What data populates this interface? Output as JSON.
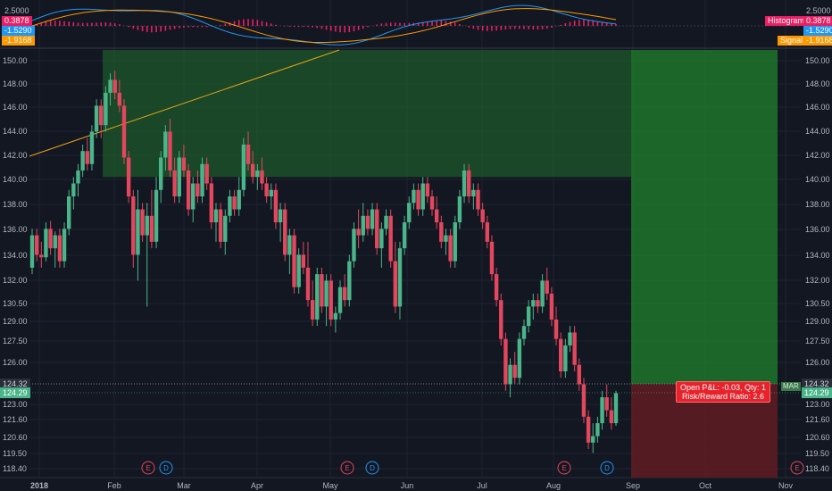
{
  "colors": {
    "background": "#131722",
    "grid": "#1f2331",
    "up": "#4bb58a",
    "down": "#e2475e",
    "profit_zone": "#1d5c2a",
    "loss_zone": "#5c1c24",
    "trendline": "#e8a317",
    "macd_line": "#2196f3",
    "signal_line": "#ff9800",
    "histogram": "#e91e63"
  },
  "macd_panel": {
    "left_labels": [
      {
        "text": "2.5000",
        "style": "plain"
      },
      {
        "text": "0.3878",
        "style": "histogram"
      },
      {
        "text": "-1.5290",
        "style": "macd"
      },
      {
        "text": "-1.9168",
        "style": "signal"
      }
    ],
    "right_labels": [
      {
        "text": "2.5000",
        "style": "plain"
      },
      {
        "text": "Histogram",
        "style": "histogram-name"
      },
      {
        "text": "0.3878",
        "style": "histogram"
      },
      {
        "text": "-1.5290",
        "style": "macd"
      },
      {
        "text": "Signal",
        "style": "signal-name"
      },
      {
        "text": "-1.9168",
        "style": "signal"
      }
    ]
  },
  "price_axis": {
    "ticks": [
      "150.00",
      "148.00",
      "146.00",
      "144.00",
      "142.00",
      "140.00",
      "138.00",
      "136.00",
      "134.00",
      "132.00",
      "130.50",
      "129.00",
      "127.50",
      "126.00",
      "124.32",
      "124.29",
      "123.00",
      "121.60",
      "120.60",
      "119.50",
      "118.40"
    ],
    "current_price": "124.32",
    "entry_price": "124.29"
  },
  "time_axis": {
    "labels": [
      "2018",
      "Feb",
      "Mar",
      "Apr",
      "May",
      "Jun",
      "Jul",
      "Aug",
      "Sep",
      "Oct",
      "Nov"
    ]
  },
  "events": [
    "E",
    "D",
    "E",
    "D",
    "E",
    "D",
    "E"
  ],
  "position": {
    "pl_line1": "Open P&L: -0.03, Qty: 1",
    "pl_line2": "Risk/Reward Ratio: 2.6",
    "tag": "MAR"
  },
  "candles": [
    [
      134,
      137,
      133.5,
      136.5
    ],
    [
      136.5,
      137,
      134.5,
      135
    ],
    [
      135,
      136,
      134,
      134.8
    ],
    [
      134.8,
      137.5,
      134.5,
      137
    ],
    [
      137,
      137.6,
      135,
      135.5
    ],
    [
      135.5,
      136.8,
      134,
      136.5
    ],
    [
      136.5,
      137,
      134,
      134.5
    ],
    [
      134.5,
      137.5,
      134,
      137
    ],
    [
      137,
      140,
      136.5,
      139.5
    ],
    [
      139.5,
      141,
      138.5,
      140.5
    ],
    [
      140.5,
      142,
      139.5,
      141.5
    ],
    [
      141.5,
      143.5,
      141,
      143
    ],
    [
      143,
      144,
      141.5,
      142
    ],
    [
      142,
      145,
      141.5,
      144.5
    ],
    [
      144.5,
      147,
      144,
      146.5
    ],
    [
      146.5,
      147,
      144,
      145
    ],
    [
      145,
      148,
      144.5,
      147.5
    ],
    [
      147.5,
      149,
      146.5,
      148.5
    ],
    [
      148.5,
      149.2,
      147,
      147.5
    ],
    [
      147.5,
      148.5,
      146,
      146.5
    ],
    [
      146.5,
      147,
      142,
      142.5
    ],
    [
      142.5,
      143,
      139,
      139.5
    ],
    [
      139.5,
      140,
      134,
      135
    ],
    [
      135,
      140,
      133,
      138.5
    ],
    [
      138.5,
      139,
      136,
      136.5
    ],
    [
      136.5,
      139,
      131,
      138
    ],
    [
      138,
      140,
      135.5,
      136
    ],
    [
      136,
      141,
      135.5,
      140
    ],
    [
      140,
      143,
      139,
      142.5
    ],
    [
      142.5,
      145,
      141.5,
      144.5
    ],
    [
      144.5,
      145.5,
      141,
      141.5
    ],
    [
      141.5,
      142.5,
      139,
      139.5
    ],
    [
      139.5,
      143,
      139,
      142.5
    ],
    [
      142.5,
      143.5,
      141,
      141.5
    ],
    [
      141.5,
      142,
      138,
      138.5
    ],
    [
      138.5,
      141,
      137.5,
      140.5
    ],
    [
      140.5,
      141.5,
      139,
      139.5
    ],
    [
      139.5,
      142.5,
      139,
      142
    ],
    [
      142,
      142.5,
      140,
      140.5
    ],
    [
      140.5,
      141,
      137,
      137.5
    ],
    [
      137.5,
      139,
      136,
      138.5
    ],
    [
      138.5,
      139,
      135.5,
      136
    ],
    [
      136,
      138.5,
      135,
      138
    ],
    [
      138,
      140,
      137.5,
      139.5
    ],
    [
      139.5,
      140,
      138,
      138.5
    ],
    [
      138.5,
      141,
      138,
      140
    ],
    [
      140,
      144,
      139.5,
      143.5
    ],
    [
      143.5,
      144.5,
      141.5,
      142
    ],
    [
      142,
      143,
      140.5,
      141
    ],
    [
      141,
      142,
      140,
      141.5
    ],
    [
      141.5,
      142.5,
      140,
      140.5
    ],
    [
      140.5,
      141,
      139,
      139.5
    ],
    [
      139.5,
      140.5,
      138.5,
      140
    ],
    [
      140,
      140.5,
      137,
      137.5
    ],
    [
      137.5,
      139,
      136,
      138.5
    ],
    [
      138.5,
      139,
      134.5,
      135
    ],
    [
      135,
      137,
      133.5,
      136.5
    ],
    [
      136.5,
      137,
      132,
      132.5
    ],
    [
      132.5,
      135.5,
      132,
      135
    ],
    [
      135,
      136,
      133.5,
      134
    ],
    [
      134,
      136,
      131,
      131.5
    ],
    [
      131.5,
      133,
      129.5,
      130
    ],
    [
      130,
      134,
      129.5,
      133.5
    ],
    [
      133.5,
      134,
      130.5,
      131
    ],
    [
      131,
      133.5,
      129.5,
      133
    ],
    [
      133,
      133.5,
      129.5,
      130
    ],
    [
      130,
      131,
      129,
      130.5
    ],
    [
      130.5,
      133,
      130,
      132.5
    ],
    [
      132.5,
      133.5,
      131,
      131.5
    ],
    [
      131.5,
      135,
      131,
      134.5
    ],
    [
      134.5,
      137.5,
      134,
      137
    ],
    [
      137,
      138.5,
      135.5,
      136.5
    ],
    [
      136.5,
      139,
      136,
      138
    ],
    [
      138,
      138.5,
      136.5,
      137
    ],
    [
      137,
      139,
      136.5,
      138.5
    ],
    [
      138.5,
      139,
      135,
      135.5
    ],
    [
      135.5,
      137.5,
      134,
      137
    ],
    [
      137,
      138.5,
      136.5,
      138
    ],
    [
      138,
      138.5,
      134,
      134.5
    ],
    [
      134.5,
      136,
      130.5,
      131
    ],
    [
      131,
      136,
      130,
      135.5
    ],
    [
      135.5,
      138,
      135,
      137.5
    ],
    [
      137.5,
      139.5,
      137,
      139
    ],
    [
      139,
      140.5,
      138.5,
      140
    ],
    [
      140,
      140.5,
      138,
      138.5
    ],
    [
      138.5,
      141,
      138,
      140.5
    ],
    [
      140.5,
      141,
      139,
      139.5
    ],
    [
      139.5,
      140,
      138,
      138.5
    ],
    [
      138.5,
      139.5,
      137,
      137.5
    ],
    [
      137.5,
      138,
      135.5,
      136
    ],
    [
      136,
      137,
      135,
      136.5
    ],
    [
      136.5,
      137,
      134,
      134.5
    ],
    [
      134.5,
      138,
      134,
      137.5
    ],
    [
      137.5,
      140,
      137,
      139.5
    ],
    [
      139.5,
      142,
      139,
      141.5
    ],
    [
      141.5,
      142,
      139,
      139.5
    ],
    [
      139.5,
      140.5,
      138.5,
      140
    ],
    [
      140,
      140.5,
      138,
      138.5
    ],
    [
      138.5,
      139,
      137,
      137.5
    ],
    [
      137.5,
      138,
      135.5,
      136
    ],
    [
      136,
      136.5,
      133,
      133.5
    ],
    [
      133.5,
      134,
      131,
      131.5
    ],
    [
      131.5,
      132,
      128,
      128.5
    ],
    [
      128.5,
      129,
      124.5,
      125
    ],
    [
      125,
      127,
      124,
      126.5
    ],
    [
      126.5,
      127.5,
      125,
      125.5
    ],
    [
      125.5,
      129,
      125,
      128.5
    ],
    [
      128.5,
      130,
      128,
      129.5
    ],
    [
      129.5,
      131.5,
      129,
      131
    ],
    [
      131,
      132,
      130,
      131.5
    ],
    [
      131.5,
      132,
      130.5,
      131
    ],
    [
      131,
      133.5,
      130.5,
      133
    ],
    [
      133,
      134,
      131.5,
      132
    ],
    [
      132,
      132.5,
      129.5,
      130
    ],
    [
      130,
      131,
      128,
      128.5
    ],
    [
      128.5,
      129,
      125.5,
      126
    ],
    [
      126,
      128.5,
      125.5,
      128
    ],
    [
      128,
      129.5,
      127.5,
      129
    ],
    [
      129,
      129.5,
      126,
      126.5
    ],
    [
      126.5,
      127,
      124.5,
      125
    ],
    [
      125,
      125.5,
      122,
      122.5
    ],
    [
      122.5,
      123,
      120,
      120.5
    ],
    [
      120.5,
      122,
      119.7,
      121
    ],
    [
      121,
      122.5,
      120.5,
      122
    ],
    [
      122,
      124.5,
      121.5,
      124
    ],
    [
      124,
      125,
      122.5,
      123
    ],
    [
      123,
      124,
      121.5,
      122
    ],
    [
      122,
      124.5,
      121.8,
      124.32
    ]
  ]
}
